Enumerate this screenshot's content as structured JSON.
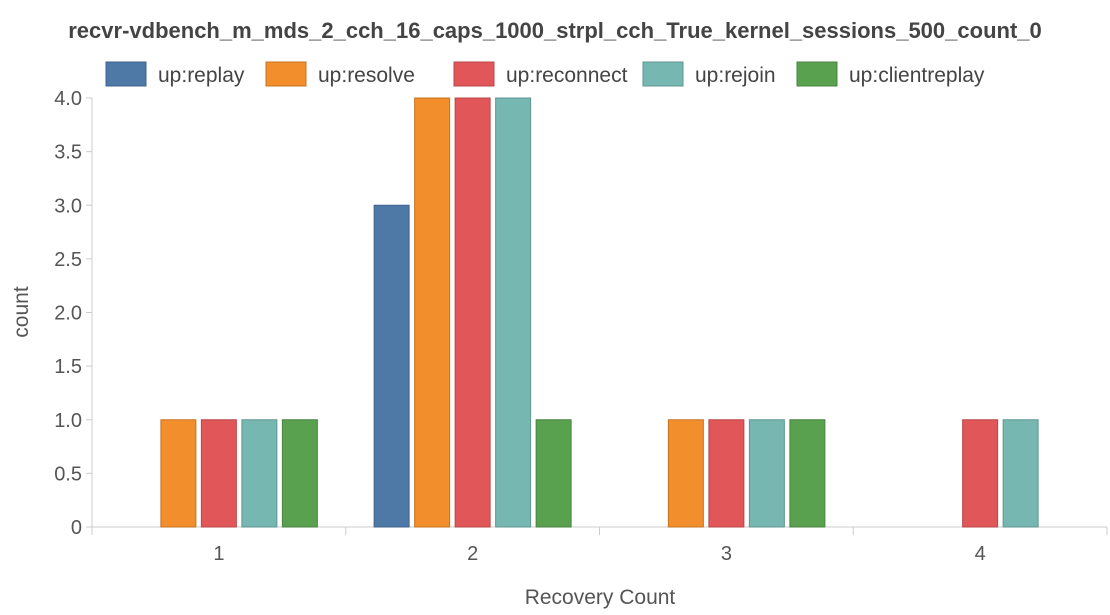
{
  "chart_data": {
    "type": "bar",
    "title": "recvr-vdbench_m_mds_2_cch_16_caps_1000_strpl_cch_True_kernel_sessions_500_count_0",
    "xlabel": "Recovery Count",
    "ylabel": "count",
    "categories": [
      "1",
      "2",
      "3",
      "4"
    ],
    "ylim": [
      0,
      4
    ],
    "yticks": [
      "0",
      "0.5",
      "1.0",
      "1.5",
      "2.0",
      "2.5",
      "3.0",
      "3.5",
      "4.0"
    ],
    "grid": false,
    "legend_position": "top",
    "series": [
      {
        "name": "up:replay",
        "color": "#4e79a7",
        "values": [
          0,
          3,
          0,
          0
        ]
      },
      {
        "name": "up:resolve",
        "color": "#f28e2b",
        "values": [
          1,
          4,
          1,
          0
        ]
      },
      {
        "name": "up:reconnect",
        "color": "#e15759",
        "values": [
          1,
          4,
          1,
          1
        ]
      },
      {
        "name": "up:rejoin",
        "color": "#76b7b2",
        "values": [
          1,
          4,
          1,
          1
        ]
      },
      {
        "name": "up:clientreplay",
        "color": "#59a14f",
        "values": [
          1,
          1,
          1,
          0
        ]
      }
    ]
  }
}
